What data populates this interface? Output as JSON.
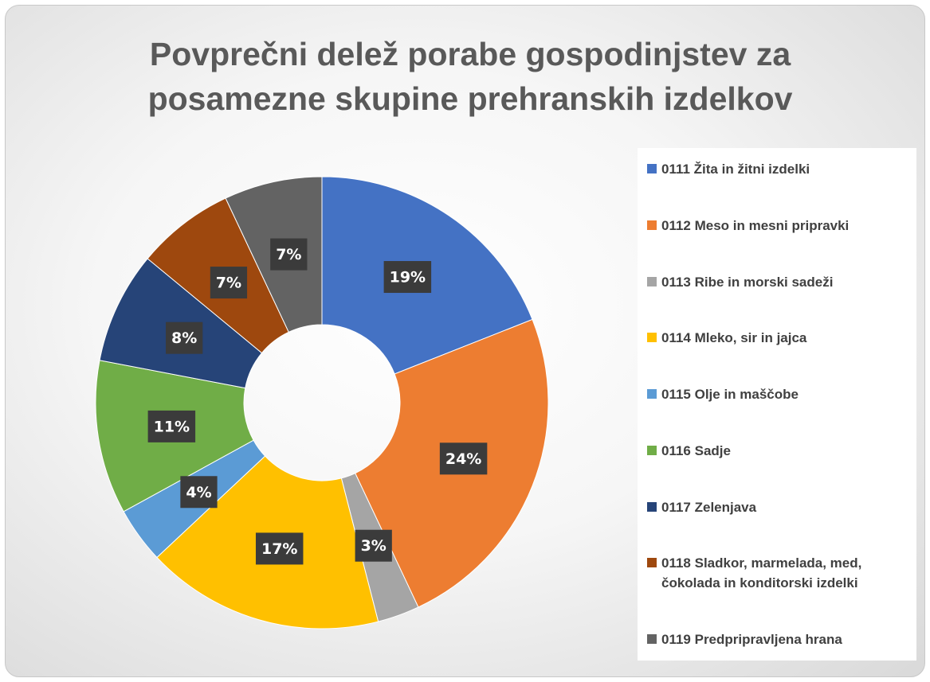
{
  "chart_data": {
    "type": "donut",
    "title": "Povprečni delež porabe gospodinjstev za posamezne skupine prehranskih izdelkov",
    "categories": [
      "0111 Žita in žitni izdelki",
      "0112 Meso in mesni pripravki",
      "0113 Ribe in morski sadeži",
      "0114 Mleko, sir in jajca",
      "0115 Olje in maščobe",
      "0116 Sadje",
      "0117 Zelenjava",
      "0118 Sladkor, marmelada, med, čokolada in konditorski izdelki",
      "0119 Predpripravljena hrana"
    ],
    "values": [
      19,
      24,
      3,
      17,
      4,
      11,
      8,
      7,
      7
    ],
    "value_labels": [
      "19%",
      "24%",
      "3%",
      "17%",
      "4%",
      "11%",
      "8%",
      "7%",
      "7%"
    ],
    "colors": [
      "#4472c4",
      "#ed7d31",
      "#a5a5a5",
      "#ffc000",
      "#5b9bd5",
      "#70ad47",
      "#264478",
      "#9e480e",
      "#636363"
    ],
    "legend": "right"
  }
}
